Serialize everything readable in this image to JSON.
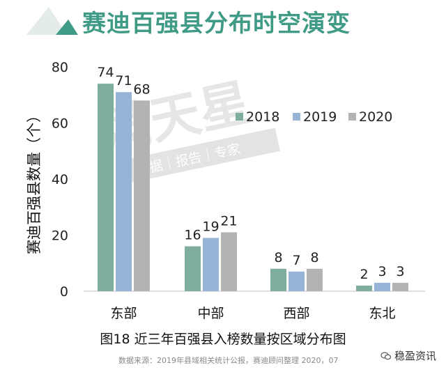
{
  "header": {
    "title": "赛迪百强县分布时空演变"
  },
  "watermark": {
    "main": "满天星",
    "sub": "数据｜报告｜专家"
  },
  "chart_data": {
    "type": "bar",
    "ylabel": "赛迪百强县数量（个）",
    "xlabel": "",
    "ylim": [
      0,
      80
    ],
    "yticks": [
      0,
      20,
      40,
      60,
      80
    ],
    "categories": [
      "东部",
      "中部",
      "西部",
      "东北"
    ],
    "series": [
      {
        "name": "2018",
        "values": [
          74,
          16,
          8,
          2
        ],
        "color": "#7fae9c"
      },
      {
        "name": "2019",
        "values": [
          71,
          19,
          7,
          3
        ],
        "color": "#97b4d6"
      },
      {
        "name": "2020",
        "values": [
          68,
          21,
          8,
          3
        ],
        "color": "#b3b3b3"
      }
    ],
    "legend_position": "upper-right",
    "grid": false
  },
  "caption": "图18 近三年百强县入榜数量按区域分布图",
  "source": "数据来源：2019年县域相关统计公报，赛迪顾问整理 2020，07",
  "brand": {
    "text": "稳盈资讯",
    "icon": "wechat-icon"
  }
}
